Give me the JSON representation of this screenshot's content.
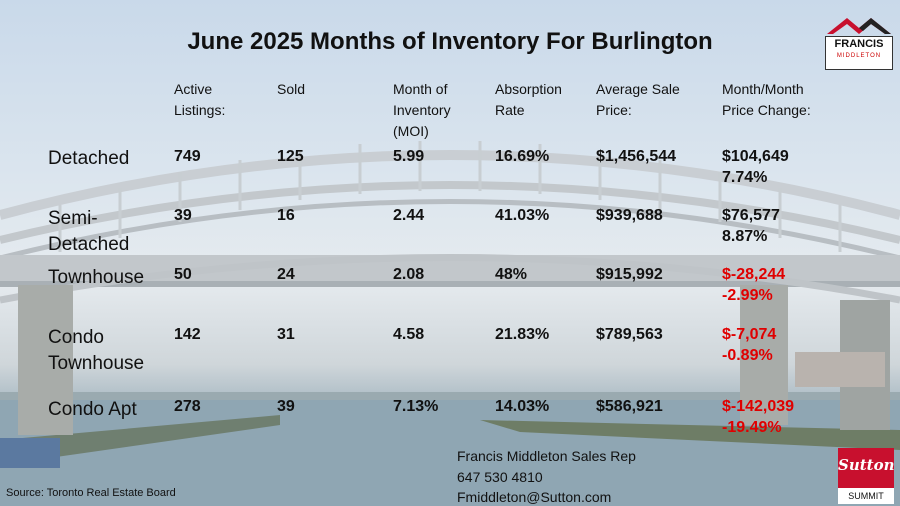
{
  "title": "June 2025 Months of Inventory For Burlington",
  "headers": [
    "Active\nListings:",
    "Sold",
    "Month of\nInventory\n(MOI)",
    "Absorption\nRate",
    "Average Sale\nPrice:",
    "Month/Month\nPrice Change:"
  ],
  "rows": [
    {
      "label": "Detached",
      "active": "749",
      "sold": "125",
      "moi": "5.99",
      "absorption": "16.69%",
      "avg_price": "$1,456,544",
      "change": "$104,649\n7.74%",
      "negative": false
    },
    {
      "label": "Semi-\nDetached",
      "active": "39",
      "sold": "16",
      "moi": "2.44",
      "absorption": "41.03%",
      "avg_price": "$939,688",
      "change": "$76,577\n8.87%",
      "negative": false
    },
    {
      "label": "Townhouse",
      "active": "50",
      "sold": "24",
      "moi": "2.08",
      "absorption": "48%",
      "avg_price": "$915,992",
      "change": "$-28,244\n-2.99%",
      "negative": true
    },
    {
      "label": "Condo\nTownhouse",
      "active": "142",
      "sold": "31",
      "moi": "4.58",
      "absorption": "21.83%",
      "avg_price": "$789,563",
      "change": "$-7,074\n-0.89%",
      "negative": true
    },
    {
      "label": "Condo Apt",
      "active": "278",
      "sold": "39",
      "moi": "7.13%",
      "absorption": "14.03%",
      "avg_price": "$586,921",
      "change": "$-142,039\n-19.49%",
      "negative": true
    }
  ],
  "contact": {
    "name": "Francis Middleton Sales Rep",
    "phone": "647 530 4810",
    "email": "Fmiddleton@Sutton.com"
  },
  "source": "Source: Toronto Real Estate Board",
  "logo": {
    "name": "FRANCIS",
    "sub": "MIDDLETON"
  },
  "brand": {
    "name": "Sutton",
    "sub": "SUMMIT"
  },
  "colors": {
    "negative": "#e00000",
    "brand_red": "#c8102e",
    "text": "#111111"
  }
}
